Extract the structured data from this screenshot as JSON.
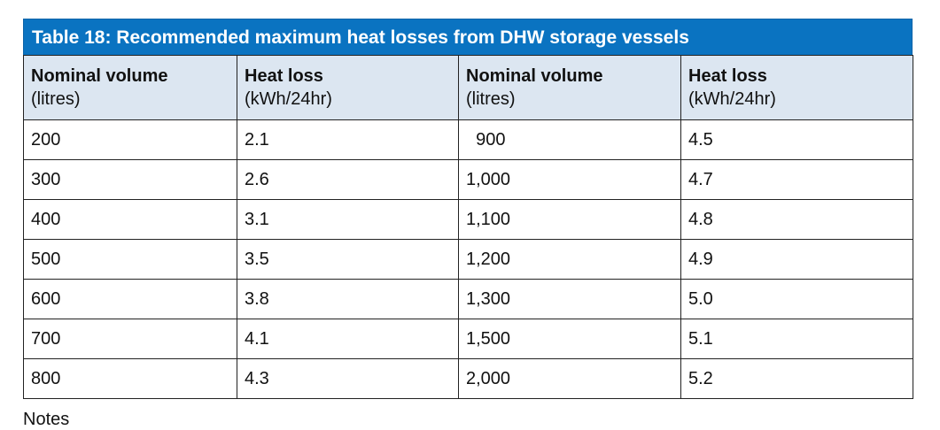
{
  "table": {
    "caption": "Table 18: Recommended maximum heat losses from DHW storage vessels",
    "headers": [
      {
        "title": "Nominal volume",
        "unit": "(litres)"
      },
      {
        "title": "Heat loss",
        "unit": "(kWh/24hr)"
      },
      {
        "title": "Nominal volume",
        "unit": "(litres)"
      },
      {
        "title": "Heat loss",
        "unit": "(kWh/24hr)"
      }
    ],
    "rows": [
      [
        "200",
        "2.1",
        "  900",
        "4.5"
      ],
      [
        "300",
        "2.6",
        "1,000",
        "4.7"
      ],
      [
        "400",
        "3.1",
        "1,100",
        "4.8"
      ],
      [
        "500",
        "3.5",
        "1,200",
        "4.9"
      ],
      [
        "600",
        "3.8",
        "1,300",
        "5.0"
      ],
      [
        "700",
        "4.1",
        "1,500",
        "5.1"
      ],
      [
        "800",
        "4.3",
        "2,000",
        "5.2"
      ]
    ]
  },
  "notes": {
    "label": "Notes"
  }
}
